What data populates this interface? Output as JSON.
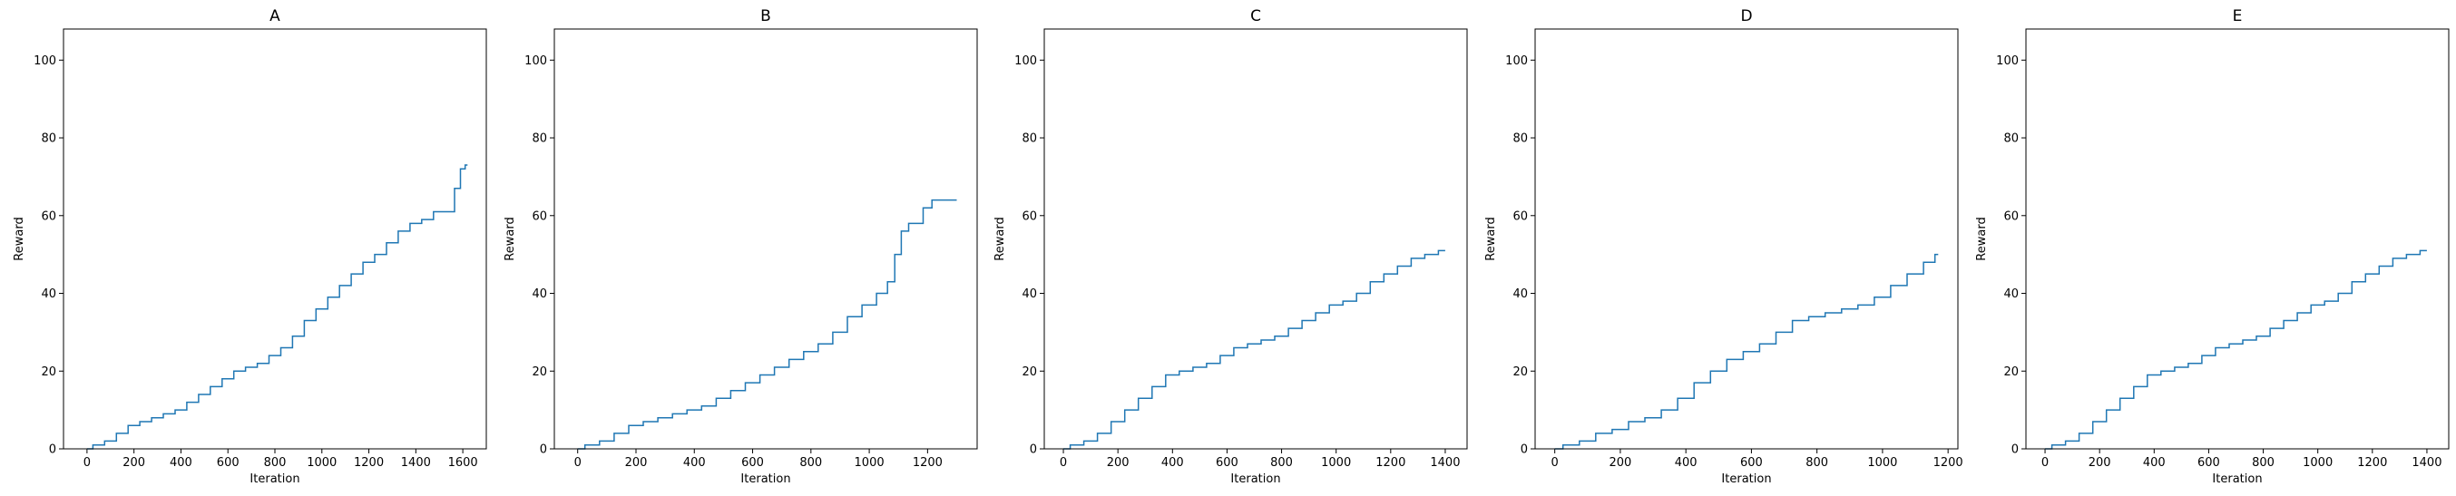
{
  "chart_data": [
    {
      "type": "line",
      "title": "A",
      "xlabel": "Iteration",
      "ylabel": "Reward",
      "xlim": [
        -100,
        1700
      ],
      "ylim": [
        0,
        108
      ],
      "xticks": [
        0,
        200,
        400,
        600,
        800,
        1000,
        1200,
        1400,
        1600
      ],
      "yticks": [
        0,
        20,
        40,
        60,
        80,
        100
      ],
      "grid": false,
      "series": [
        {
          "color": "#1f77b4",
          "x": [
            0,
            50,
            100,
            150,
            200,
            250,
            300,
            350,
            400,
            450,
            500,
            550,
            600,
            650,
            700,
            750,
            800,
            850,
            900,
            950,
            1000,
            1050,
            1100,
            1150,
            1200,
            1250,
            1300,
            1350,
            1400,
            1450,
            1500,
            1550,
            1580,
            1600,
            1620
          ],
          "y": [
            0,
            1,
            2,
            4,
            6,
            7,
            8,
            9,
            10,
            12,
            14,
            16,
            18,
            20,
            21,
            22,
            24,
            26,
            29,
            33,
            36,
            39,
            42,
            45,
            48,
            50,
            53,
            56,
            58,
            59,
            61,
            61,
            67,
            72,
            73
          ]
        }
      ]
    },
    {
      "type": "line",
      "title": "B",
      "xlabel": "Iteration",
      "ylabel": "Reward",
      "xlim": [
        -80,
        1370
      ],
      "ylim": [
        0,
        108
      ],
      "xticks": [
        0,
        200,
        400,
        600,
        800,
        1000,
        1200
      ],
      "yticks": [
        0,
        20,
        40,
        60,
        80,
        100
      ],
      "grid": false,
      "series": [
        {
          "color": "#1f77b4",
          "x": [
            0,
            50,
            100,
            150,
            200,
            250,
            300,
            350,
            400,
            450,
            500,
            550,
            600,
            650,
            700,
            750,
            800,
            850,
            900,
            950,
            1000,
            1050,
            1075,
            1100,
            1120,
            1150,
            1170,
            1200,
            1230,
            1260,
            1300
          ],
          "y": [
            0,
            1,
            2,
            4,
            6,
            7,
            8,
            9,
            10,
            11,
            13,
            15,
            17,
            19,
            21,
            23,
            25,
            27,
            30,
            34,
            37,
            40,
            43,
            50,
            56,
            58,
            58,
            62,
            64,
            64,
            64
          ]
        }
      ]
    },
    {
      "type": "line",
      "title": "C",
      "xlabel": "Iteration",
      "ylabel": "Reward",
      "xlim": [
        -70,
        1480
      ],
      "ylim": [
        0,
        108
      ],
      "xticks": [
        0,
        200,
        400,
        600,
        800,
        1000,
        1200,
        1400
      ],
      "yticks": [
        0,
        20,
        40,
        60,
        80,
        100
      ],
      "grid": false,
      "series": [
        {
          "color": "#1f77b4",
          "x": [
            0,
            50,
            100,
            150,
            200,
            250,
            300,
            350,
            400,
            450,
            500,
            550,
            600,
            650,
            700,
            750,
            800,
            850,
            900,
            950,
            1000,
            1050,
            1100,
            1150,
            1200,
            1250,
            1300,
            1350,
            1400
          ],
          "y": [
            0,
            1,
            2,
            4,
            7,
            10,
            13,
            16,
            19,
            20,
            21,
            22,
            24,
            26,
            27,
            28,
            29,
            31,
            33,
            35,
            37,
            38,
            40,
            43,
            45,
            47,
            49,
            50,
            51
          ]
        }
      ]
    },
    {
      "type": "line",
      "title": "D",
      "xlabel": "Iteration",
      "ylabel": "Reward",
      "xlim": [
        -60,
        1230
      ],
      "ylim": [
        0,
        108
      ],
      "xticks": [
        0,
        200,
        400,
        600,
        800,
        1000,
        1200
      ],
      "yticks": [
        0,
        20,
        40,
        60,
        80,
        100
      ],
      "grid": false,
      "series": [
        {
          "color": "#1f77b4",
          "x": [
            0,
            50,
            100,
            150,
            200,
            250,
            300,
            350,
            400,
            450,
            500,
            550,
            600,
            650,
            700,
            750,
            800,
            850,
            900,
            950,
            1000,
            1050,
            1100,
            1150,
            1170
          ],
          "y": [
            0,
            1,
            2,
            4,
            5,
            7,
            8,
            10,
            13,
            17,
            20,
            23,
            25,
            27,
            30,
            33,
            34,
            35,
            36,
            37,
            39,
            42,
            45,
            48,
            50
          ]
        }
      ]
    },
    {
      "type": "line",
      "title": "E",
      "xlabel": "Iteration",
      "ylabel": "Reward",
      "xlim": [
        -70,
        1480
      ],
      "ylim": [
        0,
        108
      ],
      "xticks": [
        0,
        200,
        400,
        600,
        800,
        1000,
        1200,
        1400
      ],
      "yticks": [
        0,
        20,
        40,
        60,
        80,
        100
      ],
      "grid": false,
      "series": [
        {
          "color": "#1f77b4",
          "x": [
            0,
            50,
            100,
            150,
            200,
            250,
            300,
            350,
            400,
            450,
            500,
            550,
            600,
            650,
            700,
            750,
            800,
            850,
            900,
            950,
            1000,
            1050,
            1100,
            1150,
            1200,
            1250,
            1300,
            1350,
            1400
          ],
          "y": [
            0,
            1,
            2,
            4,
            7,
            10,
            13,
            16,
            19,
            20,
            21,
            22,
            24,
            26,
            27,
            28,
            29,
            31,
            33,
            35,
            37,
            38,
            40,
            43,
            45,
            47,
            49,
            50,
            51
          ]
        }
      ]
    }
  ]
}
